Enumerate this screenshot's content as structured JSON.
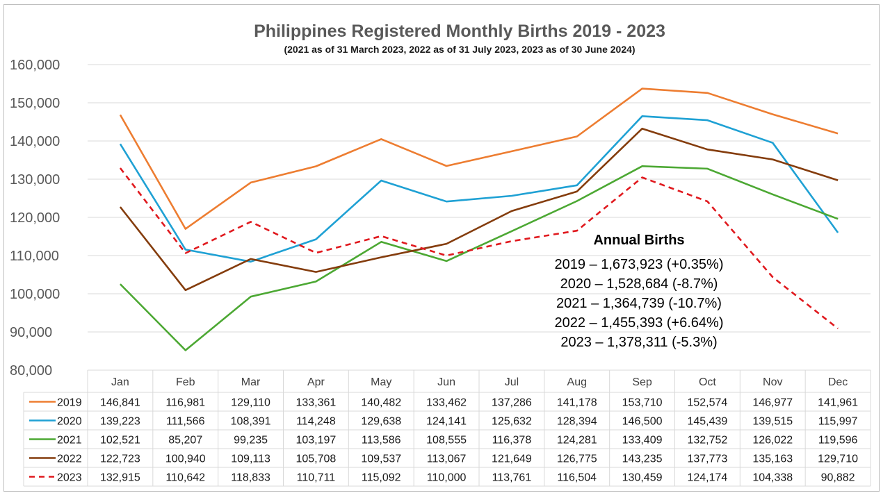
{
  "chart_data": {
    "type": "line",
    "title": "Philippines Registered Monthly Births 2019 - 2023",
    "subtitle": "(2021 as of 31 March 2023, 2022 as of 31 July 2023, 2023 as of 30 June 2024)",
    "categories": [
      "Jan",
      "Feb",
      "Mar",
      "Apr",
      "May",
      "Jun",
      "Jul",
      "Aug",
      "Sep",
      "Oct",
      "Nov",
      "Dec"
    ],
    "ylim": [
      80000,
      160000
    ],
    "yticks": [
      80000,
      90000,
      100000,
      110000,
      120000,
      130000,
      140000,
      150000,
      160000
    ],
    "ytick_labels": [
      "80,000",
      "90,000",
      "100,000",
      "110,000",
      "120,000",
      "130,000",
      "140,000",
      "150,000",
      "160,000"
    ],
    "grid": true,
    "legend": "data-table",
    "series": [
      {
        "name": "2019",
        "color": "#ED7D31",
        "dashed": false,
        "values": [
          146841,
          116981,
          129110,
          133361,
          140482,
          133462,
          137286,
          141178,
          153710,
          152574,
          146977,
          141961
        ],
        "labels": [
          "146,841",
          "116,981",
          "129,110",
          "133,361",
          "140,482",
          "133,462",
          "137,286",
          "141,178",
          "153,710",
          "152,574",
          "146,977",
          "141,961"
        ]
      },
      {
        "name": "2020",
        "color": "#1FA1D4",
        "dashed": false,
        "values": [
          139223,
          111566,
          108391,
          114248,
          129638,
          124141,
          125632,
          128394,
          146500,
          145439,
          139515,
          115997
        ],
        "labels": [
          "139,223",
          "111,566",
          "108,391",
          "114,248",
          "129,638",
          "124,141",
          "125,632",
          "128,394",
          "146,500",
          "145,439",
          "139,515",
          "115,997"
        ]
      },
      {
        "name": "2021",
        "color": "#4CA833",
        "dashed": false,
        "values": [
          102521,
          85207,
          99235,
          103197,
          113586,
          108555,
          116378,
          124281,
          133409,
          132752,
          126022,
          119596
        ],
        "labels": [
          "102,521",
          "85,207",
          "99,235",
          "103,197",
          "113,586",
          "108,555",
          "116,378",
          "124,281",
          "133,409",
          "132,752",
          "126,022",
          "119,596"
        ]
      },
      {
        "name": "2022",
        "color": "#843C0C",
        "dashed": false,
        "values": [
          122723,
          100940,
          109113,
          105708,
          109537,
          113067,
          121649,
          126775,
          143235,
          137773,
          135163,
          129710
        ],
        "labels": [
          "122,723",
          "100,940",
          "109,113",
          "105,708",
          "109,537",
          "113,067",
          "121,649",
          "126,775",
          "143,235",
          "137,773",
          "135,163",
          "129,710"
        ]
      },
      {
        "name": "2023",
        "color": "#E0191E",
        "dashed": true,
        "values": [
          132915,
          110642,
          118833,
          110711,
          115092,
          110000,
          113761,
          116504,
          130459,
          124174,
          104338,
          90882
        ],
        "labels": [
          "132,915",
          "110,642",
          "118,833",
          "110,711",
          "115,092",
          "110,000",
          "113,761",
          "116,504",
          "130,459",
          "124,174",
          "104,338",
          "90,882"
        ]
      }
    ],
    "annotation": {
      "title": "Annual Births",
      "lines": [
        "2019 – 1,673,923 (+0.35%)",
        "2020 – 1,528,684 (-8.7%)",
        "2021 – 1,364,739 (-10.7%)",
        "2022 – 1,455,393 (+6.64%)",
        "2023 – 1,378,311 (-5.3%)"
      ]
    }
  }
}
